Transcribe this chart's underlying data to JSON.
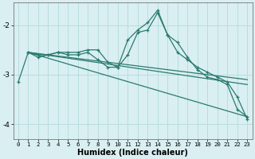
{
  "xlabel": "Humidex (Indice chaleur)",
  "background_color": "#d9eff2",
  "grid_color": "#b8dde0",
  "line_color": "#2a7a6e",
  "xlim": [
    -0.5,
    23.5
  ],
  "ylim": [
    -4.3,
    -1.55
  ],
  "yticks": [
    -4,
    -3,
    -2
  ],
  "xtick_labels": [
    "0",
    "1",
    "2",
    "3",
    "4",
    "5",
    "6",
    "7",
    "8",
    "9",
    "10",
    "11",
    "12",
    "13",
    "14",
    "15",
    "16",
    "17",
    "18",
    "19",
    "20",
    "21",
    "22",
    "23"
  ],
  "xtick_vals": [
    0,
    1,
    2,
    3,
    4,
    5,
    6,
    7,
    8,
    9,
    10,
    11,
    12,
    13,
    14,
    15,
    16,
    17,
    18,
    19,
    20,
    21,
    22,
    23
  ],
  "series": [
    {
      "x": [
        0,
        1,
        2,
        3,
        4,
        5,
        6,
        7,
        8,
        9,
        10,
        11,
        12,
        13,
        14,
        15,
        16,
        17,
        18,
        19,
        20,
        21,
        22,
        23
      ],
      "y": [
        -3.15,
        -2.55,
        -2.6,
        -2.6,
        -2.55,
        -2.55,
        -2.55,
        -2.5,
        -2.5,
        -2.75,
        -2.85,
        -2.3,
        -2.1,
        -1.95,
        -1.7,
        -2.2,
        -2.35,
        -2.65,
        -2.9,
        -3.05,
        -3.1,
        -3.2,
        -3.7,
        -3.85
      ],
      "marker": true
    },
    {
      "x": [
        1,
        2,
        3,
        4,
        5,
        6,
        7,
        8,
        9,
        10,
        11,
        12,
        13,
        14,
        15,
        16,
        17,
        18,
        19,
        20,
        21,
        22,
        23
      ],
      "y": [
        -2.55,
        -2.65,
        -2.6,
        -2.55,
        -2.6,
        -2.6,
        -2.55,
        -2.7,
        -2.85,
        -2.85,
        -2.6,
        -2.15,
        -2.1,
        -1.75,
        -2.2,
        -2.55,
        -2.7,
        -2.85,
        -2.95,
        -3.05,
        -3.15,
        -3.45,
        -3.9
      ],
      "marker": true
    },
    {
      "x": [
        1,
        23
      ],
      "y": [
        -2.55,
        -3.1
      ],
      "marker": false
    },
    {
      "x": [
        1,
        23
      ],
      "y": [
        -2.55,
        -3.2
      ],
      "marker": false
    },
    {
      "x": [
        1,
        23
      ],
      "y": [
        -2.55,
        -3.85
      ],
      "marker": false
    }
  ]
}
